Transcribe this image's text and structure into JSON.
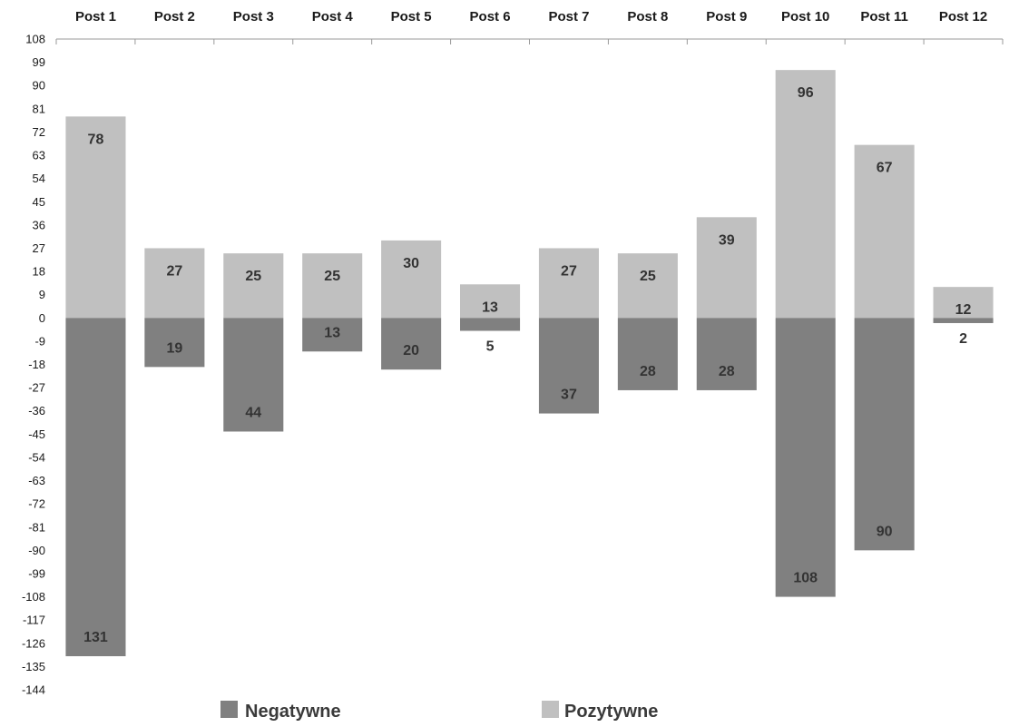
{
  "chart_data": {
    "type": "bar",
    "stacked": true,
    "categories": [
      "Post 1",
      "Post 2",
      "Post 3",
      "Post 4",
      "Post 5",
      "Post 6",
      "Post 7",
      "Post 8",
      "Post 9",
      "Post 10",
      "Post 11",
      "Post 12"
    ],
    "series": [
      {
        "name": "Negatywne",
        "values": [
          -131,
          -19,
          -44,
          -13,
          -20,
          -5,
          -37,
          -28,
          -28,
          -108,
          -90,
          -2
        ],
        "labels": [
          "131",
          "19",
          "44",
          "13",
          "20",
          "5",
          "37",
          "28",
          "28",
          "108",
          "90",
          "2"
        ],
        "color": "#808080"
      },
      {
        "name": "Pozytywne",
        "values": [
          78,
          27,
          25,
          25,
          30,
          13,
          27,
          25,
          39,
          96,
          67,
          12
        ],
        "labels": [
          "78",
          "27",
          "25",
          "25",
          "30",
          "13",
          "27",
          "25",
          "39",
          "96",
          "67",
          "12"
        ],
        "color": "#c0c0c0"
      }
    ],
    "ylim": [
      -144,
      108
    ],
    "yticks": [
      "108",
      "99",
      "90",
      "81",
      "72",
      "63",
      "54",
      "45",
      "36",
      "27",
      "18",
      "9",
      "0",
      "-9",
      "-18",
      "-27",
      "-36",
      "-45",
      "-54",
      "-63",
      "-72",
      "-81",
      "-90",
      "-99",
      "-108",
      "-117",
      "-126",
      "-135",
      "-144"
    ],
    "ytick_step": 9,
    "category_axis_position": "top",
    "grid": false,
    "legend_position": "bottom-center",
    "title": "",
    "xlabel": "",
    "ylabel": ""
  }
}
